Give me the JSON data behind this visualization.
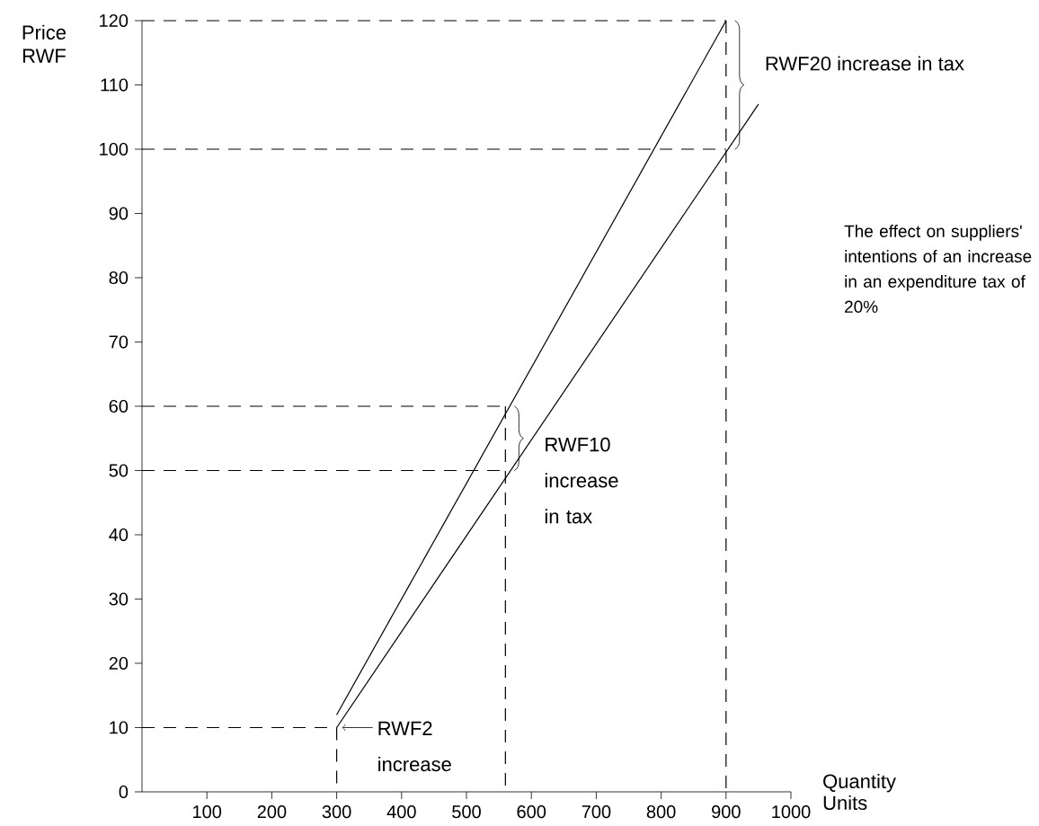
{
  "chart_data": {
    "type": "line",
    "xlabel": "Quantity Units",
    "ylabel": "Price RWF",
    "xlim": [
      0,
      1000
    ],
    "ylim": [
      0,
      120
    ],
    "xticks": [
      100,
      200,
      300,
      400,
      500,
      600,
      700,
      800,
      900,
      1000
    ],
    "yticks": [
      0,
      10,
      20,
      30,
      40,
      50,
      60,
      70,
      80,
      90,
      100,
      110,
      120
    ],
    "grid": false,
    "marker": "none",
    "series": [
      {
        "color": "#000000",
        "line_style": "solid",
        "x": [
          300,
          900
        ],
        "values": [
          12,
          120
        ]
      },
      {
        "color": "#000000",
        "line_style": "solid",
        "x": [
          300,
          950
        ],
        "values": [
          10,
          107
        ]
      },
      {
        "color": "#000000",
        "line_style": "dashed",
        "x": [
          0,
          900
        ],
        "values": [
          120,
          120
        ]
      },
      {
        "color": "#000000",
        "line_style": "dashed",
        "x": [
          900,
          900
        ],
        "values": [
          120,
          0
        ]
      },
      {
        "color": "#000000",
        "line_style": "dashed",
        "x": [
          0,
          900
        ],
        "values": [
          100,
          100
        ]
      },
      {
        "color": "#000000",
        "line_style": "dashed",
        "x": [
          0,
          560
        ],
        "values": [
          60,
          60
        ]
      },
      {
        "color": "#000000",
        "line_style": "dashed",
        "x": [
          560,
          560
        ],
        "values": [
          60,
          0
        ]
      },
      {
        "color": "#000000",
        "line_style": "dashed",
        "x": [
          0,
          560
        ],
        "values": [
          50,
          50
        ]
      },
      {
        "color": "#000000",
        "line_style": "dashed",
        "x": [
          0,
          300
        ],
        "values": [
          10,
          10
        ]
      },
      {
        "color": "#000000",
        "line_style": "dashed",
        "x": [
          300,
          300
        ],
        "values": [
          10,
          0
        ]
      }
    ],
    "annotations": [
      {
        "text": "RWF20 increase in tax",
        "x": 900,
        "y": 120
      },
      {
        "text": "RWF10 increase in tax",
        "x": 560,
        "y": 60
      },
      {
        "text": "RWF2 increase",
        "x": 300,
        "y": 10
      },
      "The effect on suppliers' intentions of an increase in an expenditure tax of 20%"
    ]
  }
}
